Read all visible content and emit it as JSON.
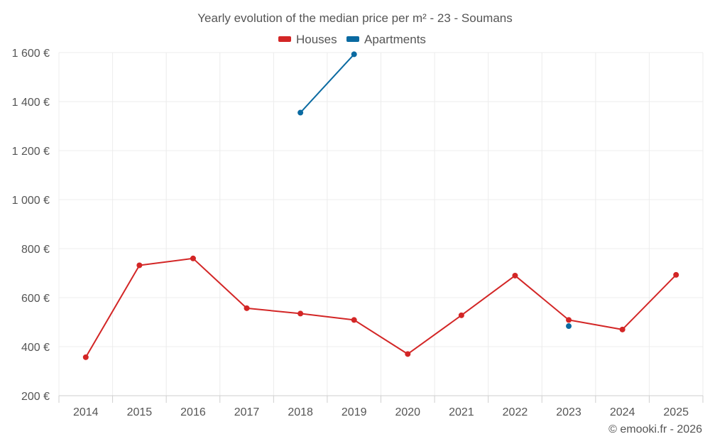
{
  "chart_data": {
    "type": "line",
    "title": "Yearly evolution of the median price per m² - 23 - Soumans",
    "categories": [
      "2014",
      "2015",
      "2016",
      "2017",
      "2018",
      "2019",
      "2020",
      "2021",
      "2022",
      "2023",
      "2024",
      "2025"
    ],
    "y_tick_labels": [
      "200 €",
      "400 €",
      "600 €",
      "800 €",
      "1 000 €",
      "1 200 €",
      "1 400 €",
      "1 600 €"
    ],
    "y_ticks": [
      200,
      400,
      600,
      800,
      1000,
      1200,
      1400,
      1600
    ],
    "ylim": [
      200,
      1600
    ],
    "grid": true,
    "legend_position": "top-center",
    "series": [
      {
        "name": "Houses",
        "color": "#d32626",
        "values": [
          357,
          732,
          760,
          557,
          535,
          509,
          370,
          528,
          690,
          509,
          470,
          693
        ]
      },
      {
        "name": "Apartments",
        "color": "#0a6aa1",
        "values": [
          null,
          null,
          null,
          null,
          1355,
          1593,
          null,
          null,
          null,
          484,
          null,
          null
        ]
      }
    ]
  },
  "credit": "© emooki.fr - 2026"
}
